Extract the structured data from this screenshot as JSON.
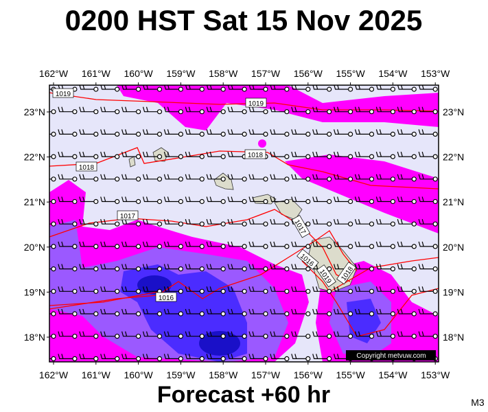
{
  "header": {
    "title": "0200 HST Sat 15 Nov 2025"
  },
  "map": {
    "lon_ticks": [
      {
        "value": -162,
        "label": "162°W"
      },
      {
        "value": -161,
        "label": "161°W"
      },
      {
        "value": -160,
        "label": "160°W"
      },
      {
        "value": -159,
        "label": "159°W"
      },
      {
        "value": -158,
        "label": "158°W"
      },
      {
        "value": -157,
        "label": "157°W"
      },
      {
        "value": -156,
        "label": "156°W"
      },
      {
        "value": -155,
        "label": "155°W"
      },
      {
        "value": -154,
        "label": "154°W"
      },
      {
        "value": -153,
        "label": "153°W"
      }
    ],
    "lat_ticks": [
      {
        "value": 23,
        "label": "23°N"
      },
      {
        "value": 22,
        "label": "22°N"
      },
      {
        "value": 21,
        "label": "21°N"
      },
      {
        "value": 20,
        "label": "20°N"
      },
      {
        "value": 19,
        "label": "19°N"
      },
      {
        "value": 18,
        "label": "18°N"
      }
    ],
    "isobar_labels": [
      "1019",
      "1019",
      "1018",
      "1018",
      "1017",
      "1017",
      "1016",
      "1016",
      "1019",
      "1018"
    ],
    "copyright": "Copyright metvuw.com"
  },
  "footer": {
    "forecast": "Forecast +60 hr",
    "model": "M3"
  }
}
